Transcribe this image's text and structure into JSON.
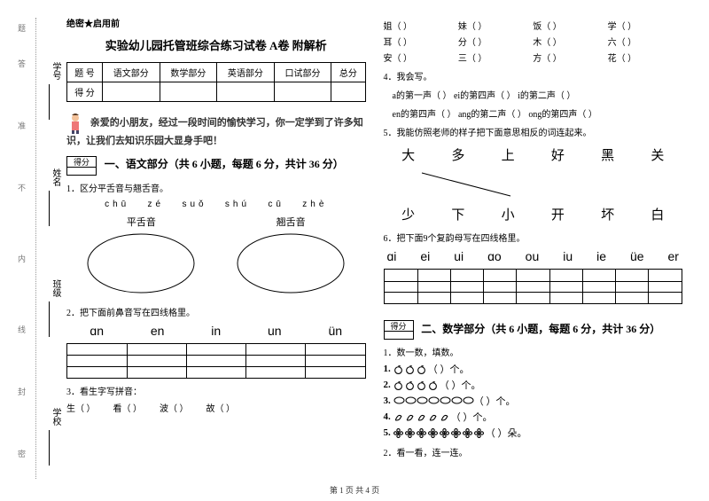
{
  "binding": {
    "labels": [
      "学号",
      "姓名",
      "班级",
      "学校"
    ],
    "marks": [
      "题",
      "答",
      "准",
      "不",
      "内",
      "线",
      "封",
      "密"
    ]
  },
  "secret": "绝密★启用前",
  "title": "实验幼儿园托管班综合练习试卷 A卷 附解析",
  "scoreTable": {
    "header": [
      "题  号",
      "语文部分",
      "数学部分",
      "英语部分",
      "口试部分",
      "总分"
    ],
    "row2first": "得  分"
  },
  "intro": "亲爱的小朋友，经过一段时间的愉快学习，你一定学到了许多知识，让我们去知识乐园大显身手吧！",
  "sec1": {
    "heading": "一、语文部分（共 6 小题，每题 6 分，共计 36 分）",
    "q1": "1．区分平舌音与翘舌音。",
    "pinyin": [
      "chū",
      "zé",
      "suǒ",
      "shú",
      "cū",
      "zhè"
    ],
    "labels": {
      "flat": "平舌音",
      "curl": "翘舌音"
    },
    "q2": "2．把下面前鼻音写在四线格里。",
    "vowels": [
      "ɑn",
      "en",
      "in",
      "un",
      "ün"
    ],
    "q3": "3．看生字写拼音：",
    "chars3": [
      "生（        ）",
      "看（        ）",
      "波（        ）",
      "故（        ）"
    ]
  },
  "right": {
    "char_rows": [
      [
        "姐（        ）",
        "妹（        ）",
        "饭（        ）",
        "学（        ）"
      ],
      [
        "耳（        ）",
        "分（        ）",
        "木（        ）",
        "六（        ）"
      ],
      [
        "安（        ）",
        "三（        ）",
        "方（        ）",
        "花（        ）"
      ]
    ],
    "q4": "4．我会写。",
    "q4_lines": [
      "a的第一声（        ）      ei的第四声（        ）      i的第二声（        ）",
      "en的第四声（        ）     ang的第二声（        ）     ong的第四声（        ）"
    ],
    "q5": "5．我能仿照老师的样子把下面意思相反的词连起来。",
    "top": [
      "大",
      "多",
      "上",
      "好",
      "黑",
      "关"
    ],
    "bottom": [
      "少",
      "下",
      "小",
      "开",
      "坏",
      "白"
    ],
    "q6": "6．把下面9个复韵母写在四线格里。",
    "compound": [
      "ɑi",
      "ei",
      "ui",
      "ɑo",
      "ou",
      "iu",
      "ie",
      "üe",
      "er"
    ]
  },
  "sec2": {
    "heading": "二、数学部分（共 6 小题，每题 6 分，共计 36 分）",
    "q1": "1．数一数，填数。",
    "rows": [
      {
        "n": "1.",
        "count": 3,
        "shape": "apple",
        "tail": "（    ）个。"
      },
      {
        "n": "2.",
        "count": 4,
        "shape": "apple",
        "tail": "（    ）个。"
      },
      {
        "n": "3.",
        "count": 7,
        "shape": "ellipse",
        "tail": "（    ）个。"
      },
      {
        "n": "4.",
        "count": 5,
        "shape": "leaf",
        "tail": "（    ）个。"
      },
      {
        "n": "5.",
        "count": 8,
        "shape": "flower",
        "tail": "（    ）朵。"
      }
    ],
    "q2": "2．看一看，连一连。"
  },
  "footer": "第 1 页 共 4 页"
}
